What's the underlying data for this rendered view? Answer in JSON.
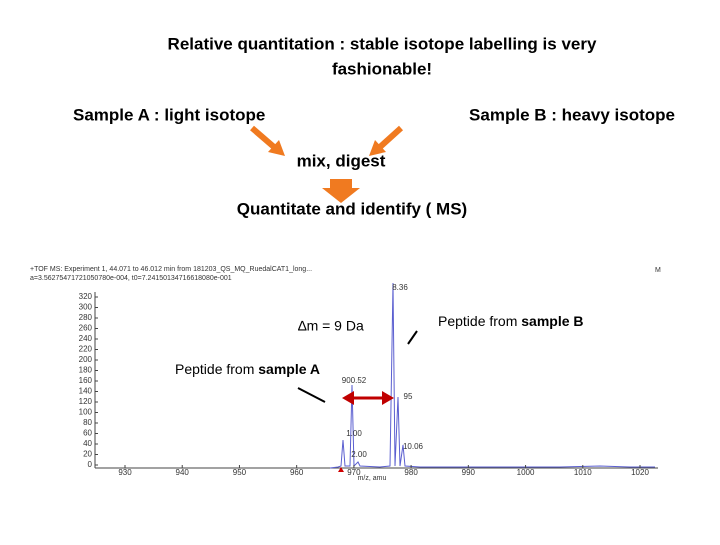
{
  "title": {
    "line1": "Relative quantitation :  stable isotope labelling is very",
    "line2": "fashionable!"
  },
  "sample_a": "Sample A : light isotope",
  "sample_b": "Sample B : heavy isotope",
  "step1": "mix, digest",
  "step2": "Quantitate and identify ( MS)",
  "spectrum": {
    "header1": "+TOF MS: Experiment 1, 44.071 to 46.012 min from 181203_QS_MQ_RuedalCAT1_long...",
    "header2": "a=3.56275471721050780e-004, t0=7.24150134716618080e-001",
    "corner": "M",
    "yticks": [
      320,
      300,
      280,
      260,
      240,
      220,
      200,
      180,
      160,
      140,
      120,
      100,
      80,
      60,
      40,
      20,
      0
    ],
    "xticks": [
      930,
      940,
      950,
      960,
      970,
      980,
      990,
      1000,
      1010,
      1020
    ],
    "xlabel": "m/z, amu",
    "peak_labels": [
      "8.36",
      "900.52",
      "95",
      "1.00",
      "2.00",
      "10.06"
    ]
  },
  "delta": "∆m = 9 Da",
  "peptide_a": {
    "prefix": "Peptide from ",
    "bold": "sample A"
  },
  "peptide_b": {
    "prefix": "Peptide from ",
    "bold": "sample B"
  }
}
